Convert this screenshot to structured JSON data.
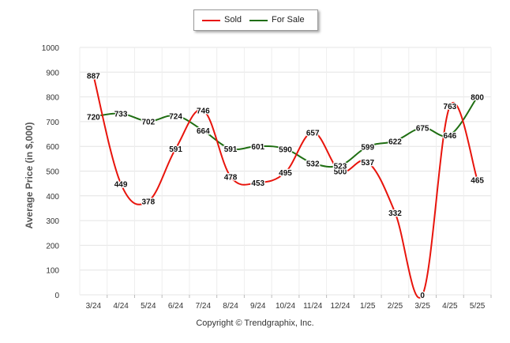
{
  "chart_data": {
    "type": "line",
    "categories": [
      "3/24",
      "4/24",
      "5/24",
      "6/24",
      "7/24",
      "8/24",
      "9/24",
      "10/24",
      "11/24",
      "12/24",
      "1/25",
      "2/25",
      "3/25",
      "4/25",
      "5/25"
    ],
    "series": [
      {
        "name": "Sold",
        "color": "#e8140c",
        "values": [
          887,
          449,
          378,
          591,
          746,
          478,
          453,
          495,
          657,
          500,
          537,
          332,
          0,
          763,
          465
        ]
      },
      {
        "name": "For Sale",
        "color": "#1f6e12",
        "values": [
          720,
          733,
          702,
          724,
          664,
          591,
          601,
          590,
          532,
          523,
          599,
          622,
          675,
          646,
          800
        ]
      }
    ],
    "ylabel": "Average Price (in $,000)",
    "xlabel": "",
    "ylim": [
      0,
      1000
    ],
    "yticks": [
      0,
      100,
      200,
      300,
      400,
      500,
      600,
      700,
      800,
      900,
      1000
    ],
    "grid": true,
    "legend_position": "top-center"
  },
  "legend": {
    "sold_label": "Sold",
    "for_sale_label": "For Sale"
  },
  "footer": {
    "copyright": "Copyright © Trendgraphix, Inc."
  }
}
